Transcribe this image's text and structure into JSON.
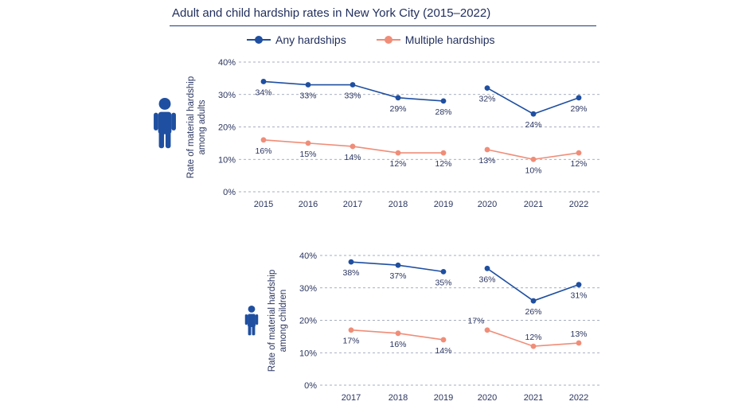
{
  "title": "Adult and child hardship rates in New York City (2015–2022)",
  "legend": [
    {
      "label": "Any hardships",
      "color": "#1f4fa0"
    },
    {
      "label": "Multiple hardships",
      "color": "#f08d78"
    }
  ],
  "icons": {
    "adult": "adult-person-icon",
    "child": "child-person-icon",
    "icon_color": "#1f4fa0"
  },
  "chart_data": [
    {
      "type": "line",
      "ylabel": "Rate of material hardship among adults",
      "ylim": [
        0,
        40
      ],
      "yticks": [
        "0%",
        "10%",
        "20%",
        "30%",
        "40%"
      ],
      "categories": [
        "2015",
        "2016",
        "2017",
        "2018",
        "2019",
        "2020",
        "2021",
        "2022"
      ],
      "series": [
        {
          "name": "Any hardships",
          "color": "#1f4fa0",
          "segments": [
            [
              "2015",
              "2016",
              "2017",
              "2018",
              "2019"
            ],
            [
              "2020",
              "2021",
              "2022"
            ]
          ],
          "values": [
            34,
            33,
            33,
            29,
            28,
            32,
            24,
            29
          ],
          "labels": [
            "34%",
            "33%",
            "33%",
            "29%",
            "28%",
            "32%",
            "24%",
            "29%"
          ]
        },
        {
          "name": "Multiple hardships",
          "color": "#f08d78",
          "segments": [
            [
              "2015",
              "2016",
              "2017",
              "2018",
              "2019"
            ],
            [
              "2020",
              "2021",
              "2022"
            ]
          ],
          "values": [
            16,
            15,
            14,
            12,
            12,
            13,
            10,
            12
          ],
          "labels": [
            "16%",
            "15%",
            "14%",
            "12%",
            "12%",
            "13%",
            "10%",
            "12%"
          ]
        }
      ]
    },
    {
      "type": "line",
      "ylabel": "Rate of material hardship among children",
      "ylim": [
        0,
        40
      ],
      "yticks": [
        "0%",
        "10%",
        "20%",
        "30%",
        "40%"
      ],
      "categories": [
        "2017",
        "2018",
        "2019",
        "2020",
        "2021",
        "2022"
      ],
      "series": [
        {
          "name": "Any hardships",
          "color": "#1f4fa0",
          "segments": [
            [
              "2017",
              "2018",
              "2019"
            ],
            [
              "2020",
              "2021",
              "2022"
            ]
          ],
          "values": [
            38,
            37,
            35,
            36,
            26,
            31
          ],
          "labels": [
            "38%",
            "37%",
            "35%",
            "36%",
            "26%",
            "31%"
          ]
        },
        {
          "name": "Multiple hardships",
          "color": "#f08d78",
          "segments": [
            [
              "2017",
              "2018",
              "2019"
            ],
            [
              "2020",
              "2021",
              "2022"
            ]
          ],
          "values": [
            17,
            16,
            14,
            17,
            12,
            13
          ],
          "labels": [
            "17%",
            "16%",
            "14%",
            "17%",
            "12%",
            "13%"
          ]
        }
      ]
    }
  ]
}
